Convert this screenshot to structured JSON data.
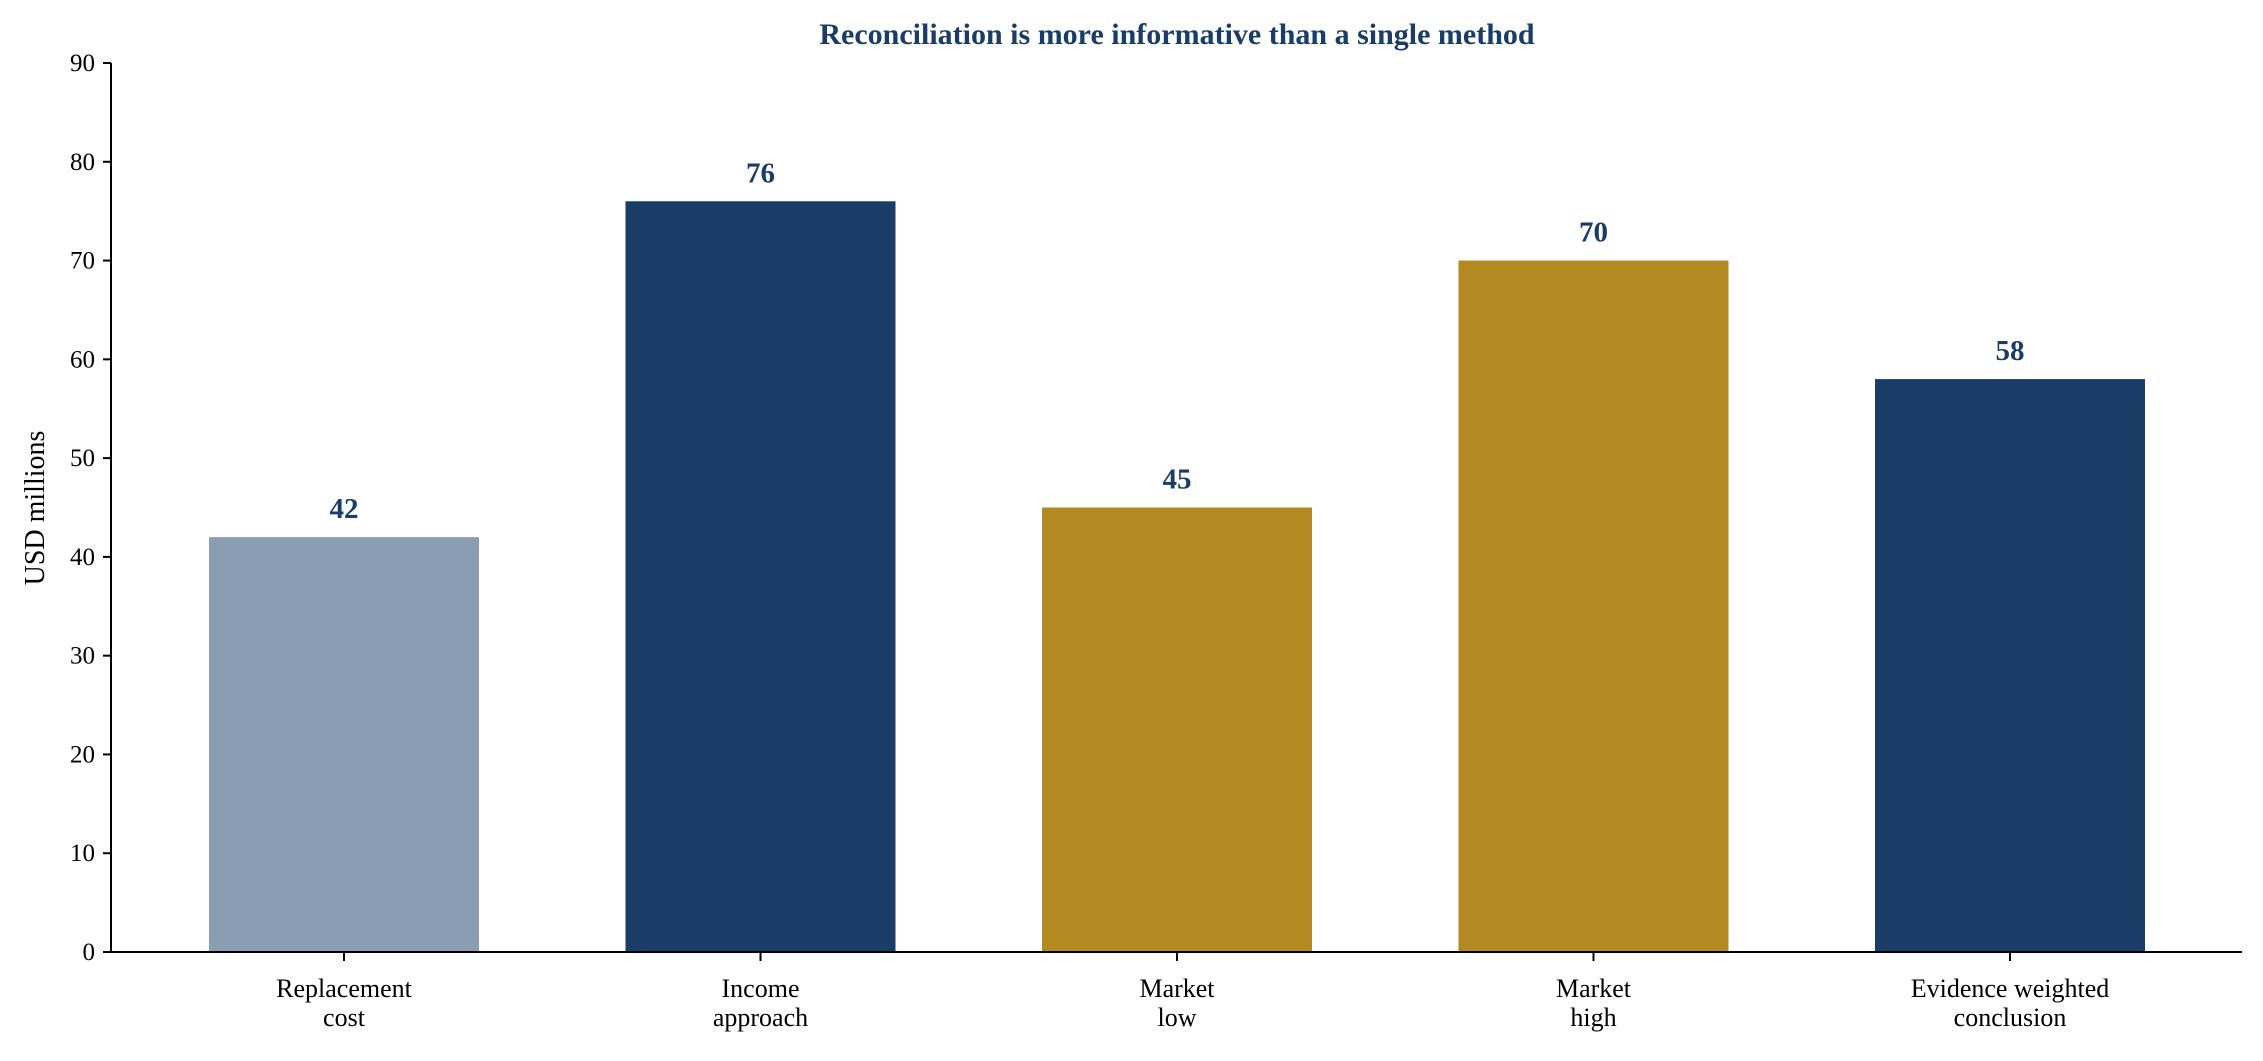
{
  "chart_data": {
    "type": "bar",
    "title": "Reconciliation is more informative than a single method",
    "xlabel": "",
    "ylabel": "USD millions",
    "ylim": [
      0,
      90
    ],
    "yticks": [
      0,
      10,
      20,
      30,
      40,
      50,
      60,
      70,
      80,
      90
    ],
    "grid": false,
    "legend": "none",
    "categories": [
      [
        "Replacement",
        "cost"
      ],
      [
        "Income",
        "approach"
      ],
      [
        "Market",
        "low"
      ],
      [
        "Market",
        "high"
      ],
      [
        "Evidence weighted",
        "conclusion"
      ]
    ],
    "values": [
      42,
      76,
      45,
      70,
      58
    ],
    "value_labels": [
      "42",
      "76",
      "45",
      "70",
      "58"
    ],
    "bar_colors": [
      "#8a9db2",
      "#1a3d68",
      "#b38a22",
      "#b38a22",
      "#1a3d68"
    ]
  },
  "colors": {
    "title": "#1a3d68",
    "value_label": "#1a3d68",
    "axis": "#000000"
  }
}
